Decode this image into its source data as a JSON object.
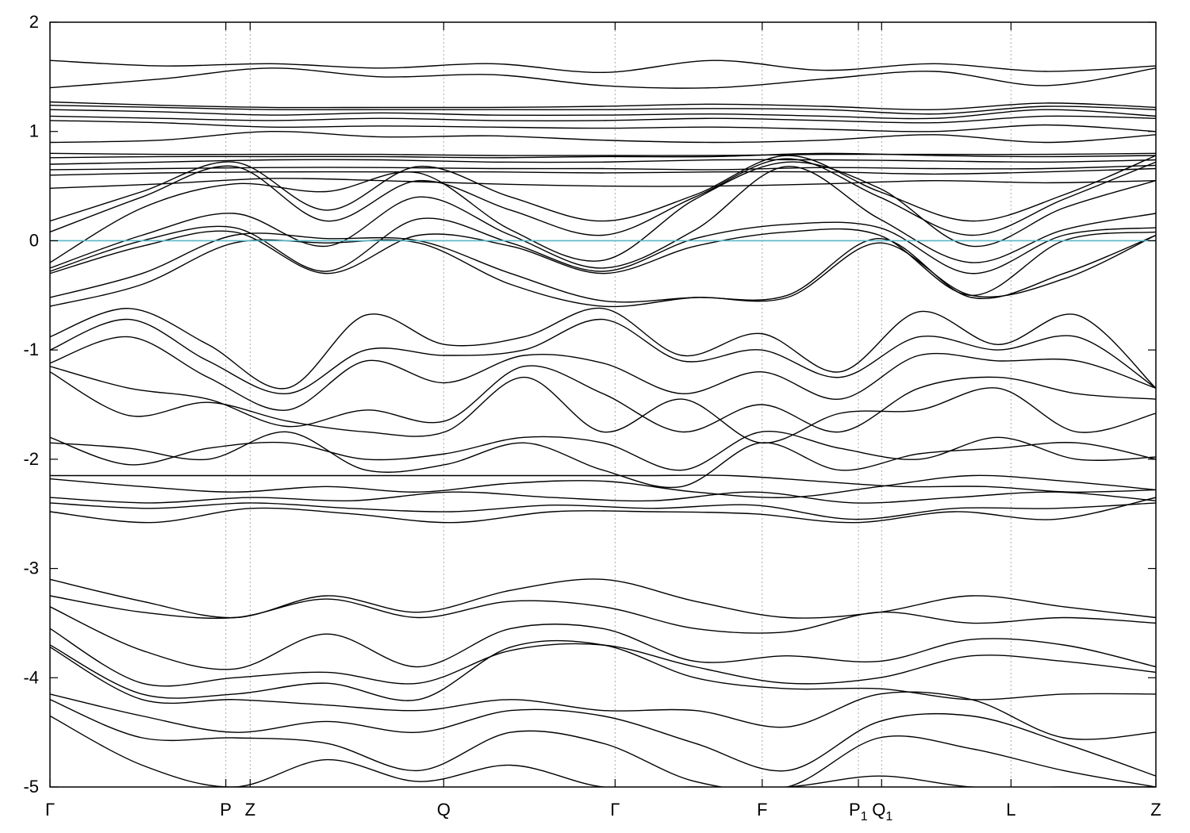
{
  "chart_data": {
    "type": "line",
    "title": "",
    "xlabel": "",
    "ylabel": "",
    "ylim": [
      -5,
      2
    ],
    "yticks": [
      -5,
      -4,
      -3,
      -2,
      -1,
      0,
      1,
      2
    ],
    "ytick_labels": [
      "-5",
      "-4",
      "-3",
      "-2",
      "-1",
      "0",
      "1",
      "2"
    ],
    "xlim": [
      0,
      1
    ],
    "grid": "vertical dotted lines at high-symmetry points",
    "fermi_level": 0,
    "colors": {
      "bands": "#000000",
      "fermi": "#5ab4c8",
      "kline": "#aaaaaa"
    },
    "kpoints": [
      {
        "label": "Γ",
        "sub": "",
        "x": 0.0
      },
      {
        "label": "P",
        "sub": "",
        "x": 0.159
      },
      {
        "label": "Z",
        "sub": "",
        "x": 0.181
      },
      {
        "label": "Q",
        "sub": "",
        "x": 0.356
      },
      {
        "label": "Γ",
        "sub": "",
        "x": 0.511
      },
      {
        "label": "F",
        "sub": "",
        "x": 0.644
      },
      {
        "label": "P",
        "sub": "1",
        "x": 0.731
      },
      {
        "label": "Q",
        "sub": "1",
        "x": 0.752
      },
      {
        "label": "L",
        "sub": "",
        "x": 0.869
      },
      {
        "label": "Z",
        "sub": "",
        "x": 1.0
      }
    ],
    "series": [
      {
        "values": [
          1.65,
          1.6,
          1.62,
          1.58,
          1.62,
          1.54,
          1.65,
          1.56,
          1.62,
          1.55,
          1.6
        ]
      },
      {
        "values": [
          1.4,
          1.48,
          1.58,
          1.5,
          1.52,
          1.42,
          1.4,
          1.48,
          1.55,
          1.42,
          1.58
        ]
      },
      {
        "values": [
          1.27,
          1.24,
          1.22,
          1.22,
          1.22,
          1.23,
          1.25,
          1.23,
          1.2,
          1.26,
          1.22
        ]
      },
      {
        "values": [
          1.24,
          1.22,
          1.2,
          1.2,
          1.2,
          1.2,
          1.21,
          1.2,
          1.16,
          1.23,
          1.2
        ]
      },
      {
        "values": [
          1.2,
          1.18,
          1.15,
          1.17,
          1.15,
          1.15,
          1.16,
          1.14,
          1.12,
          1.2,
          1.14
        ]
      },
      {
        "values": [
          1.14,
          1.12,
          1.1,
          1.12,
          1.1,
          1.1,
          1.12,
          1.1,
          1.08,
          1.14,
          1.12
        ]
      },
      {
        "values": [
          1.1,
          1.08,
          1.04,
          1.05,
          1.04,
          1.03,
          1.04,
          1.02,
          1.0,
          1.06,
          1.0
        ]
      },
      {
        "values": [
          0.9,
          0.92,
          1.0,
          0.95,
          0.96,
          0.92,
          0.9,
          0.92,
          0.97,
          0.9,
          0.97
        ]
      },
      {
        "values": [
          0.8,
          0.79,
          0.79,
          0.79,
          0.78,
          0.78,
          0.78,
          0.79,
          0.79,
          0.79,
          0.8
        ]
      },
      {
        "values": [
          0.76,
          0.77,
          0.77,
          0.77,
          0.76,
          0.77,
          0.77,
          0.8,
          0.78,
          0.77,
          0.78
        ]
      },
      {
        "values": [
          0.7,
          0.72,
          0.74,
          0.74,
          0.72,
          0.72,
          0.74,
          0.74,
          0.73,
          0.72,
          0.74
        ]
      },
      {
        "values": [
          0.65,
          0.66,
          0.67,
          0.67,
          0.66,
          0.66,
          0.65,
          0.67,
          0.66,
          0.66,
          0.69
        ]
      },
      {
        "values": [
          0.6,
          0.62,
          0.63,
          0.63,
          0.63,
          0.62,
          0.63,
          0.63,
          0.61,
          0.63,
          0.66
        ]
      },
      {
        "values": [
          0.48,
          0.52,
          0.57,
          0.55,
          0.52,
          0.5,
          0.5,
          0.52,
          0.55,
          0.53,
          0.55
        ]
      },
      {
        "values": [
          0.18,
          0.45,
          0.72,
          0.28,
          0.68,
          0.4,
          0.18,
          0.42,
          0.78,
          0.45,
          0.18,
          0.42,
          0.78
        ]
      },
      {
        "values": [
          0.08,
          0.4,
          0.68,
          0.18,
          0.55,
          0.28,
          0.05,
          0.4,
          0.75,
          0.4,
          0.05,
          0.38,
          0.72
        ]
      },
      {
        "values": [
          -0.2,
          0.3,
          0.52,
          0.45,
          0.62,
          0.1,
          -0.18,
          0.38,
          0.72,
          0.48,
          -0.05,
          0.3,
          0.55
        ]
      },
      {
        "values": [
          -0.25,
          0.05,
          0.25,
          -0.05,
          0.4,
          0.05,
          -0.25,
          0.1,
          0.68,
          0.2,
          -0.2,
          0.1,
          0.25
        ]
      },
      {
        "values": [
          -0.28,
          0.0,
          0.12,
          -0.28,
          0.2,
          -0.02,
          -0.28,
          0.02,
          0.15,
          0.12,
          -0.3,
          0.05,
          0.12
        ]
      },
      {
        "values": [
          -0.3,
          -0.05,
          0.08,
          -0.3,
          0.05,
          -0.05,
          -0.3,
          -0.05,
          0.08,
          0.05,
          -0.5,
          0.0,
          0.08
        ]
      },
      {
        "values": [
          -0.52,
          -0.3,
          0.05,
          0.02,
          0.0,
          -0.3,
          -0.55,
          -0.52,
          -0.5,
          0.02,
          -0.52,
          -0.3,
          0.05
        ]
      },
      {
        "values": [
          -0.6,
          -0.4,
          -0.02,
          -0.02,
          -0.02,
          -0.4,
          -0.6,
          -0.52,
          -0.52,
          -0.02,
          -0.5,
          -0.35,
          0.05
        ]
      },
      {
        "values": [
          -0.88,
          -0.62,
          -0.95,
          -1.35,
          -0.68,
          -0.95,
          -0.88,
          -0.62,
          -1.05,
          -0.85,
          -1.2,
          -0.65,
          -0.95,
          -0.68,
          -1.35
        ]
      },
      {
        "values": [
          -1.0,
          -0.72,
          -1.1,
          -1.4,
          -1.0,
          -1.05,
          -1.0,
          -0.72,
          -1.1,
          -1.0,
          -1.25,
          -0.88,
          -1.0,
          -0.88,
          -1.35
        ]
      },
      {
        "values": [
          -1.12,
          -0.88,
          -1.25,
          -1.55,
          -1.1,
          -1.3,
          -1.05,
          -1.12,
          -1.4,
          -1.2,
          -1.45,
          -1.05,
          -1.1,
          -1.1,
          -1.35
        ]
      },
      {
        "values": [
          -1.15,
          -1.35,
          -1.45,
          -1.7,
          -1.55,
          -1.65,
          -1.15,
          -1.4,
          -1.75,
          -1.5,
          -1.75,
          -1.35,
          -1.25,
          -1.4,
          -1.45
        ]
      },
      {
        "values": [
          -1.2,
          -1.6,
          -1.48,
          -1.65,
          -1.75,
          -1.75,
          -1.25,
          -1.75,
          -1.45,
          -1.85,
          -1.58,
          -1.55,
          -1.35,
          -1.75,
          -1.58
        ]
      },
      {
        "values": [
          -1.8,
          -2.05,
          -1.9,
          -1.85,
          -2.0,
          -1.95,
          -1.8,
          -1.85,
          -2.1,
          -1.75,
          -1.9,
          -2.0,
          -1.8,
          -2.0,
          -1.98
        ]
      },
      {
        "values": [
          -1.85,
          -1.9,
          -2.0,
          -1.75,
          -2.1,
          -2.05,
          -1.85,
          -2.1,
          -2.25,
          -1.85,
          -2.1,
          -1.95,
          -1.9,
          -1.85,
          -2.0
        ]
      },
      {
        "values": [
          -2.15,
          -2.15,
          -2.15,
          -2.15,
          -2.15,
          -2.15,
          -2.15,
          -2.15,
          -2.15,
          -2.2,
          -2.25,
          -2.25,
          -2.3,
          -2.28
        ]
      },
      {
        "values": [
          -2.18,
          -2.25,
          -2.3,
          -2.25,
          -2.3,
          -2.22,
          -2.2,
          -2.3,
          -2.35,
          -2.25,
          -2.15,
          -2.2,
          -2.28
        ]
      },
      {
        "values": [
          -2.35,
          -2.4,
          -2.35,
          -2.38,
          -2.3,
          -2.35,
          -2.38,
          -2.3,
          -2.4,
          -2.35,
          -2.3,
          -2.38
        ]
      },
      {
        "values": [
          -2.4,
          -2.45,
          -2.4,
          -2.45,
          -2.48,
          -2.42,
          -2.45,
          -2.42,
          -2.55,
          -2.45,
          -2.45,
          -2.4
        ]
      },
      {
        "values": [
          -2.48,
          -2.58,
          -2.45,
          -2.5,
          -2.58,
          -2.48,
          -2.48,
          -2.5,
          -2.58,
          -2.48,
          -2.55,
          -2.35
        ]
      },
      {
        "values": [
          -3.1,
          -3.3,
          -3.45,
          -3.25,
          -3.4,
          -3.2,
          -3.1,
          -3.3,
          -3.45,
          -3.4,
          -3.25,
          -3.35,
          -3.45
        ]
      },
      {
        "values": [
          -3.25,
          -3.4,
          -3.45,
          -3.28,
          -3.45,
          -3.3,
          -3.35,
          -3.55,
          -3.58,
          -3.4,
          -3.5,
          -3.45,
          -3.5
        ]
      },
      {
        "values": [
          -3.35,
          -3.75,
          -3.92,
          -3.6,
          -3.9,
          -3.55,
          -3.55,
          -3.85,
          -3.8,
          -3.85,
          -3.65,
          -3.7,
          -3.9
        ]
      },
      {
        "values": [
          -3.55,
          -4.05,
          -4.0,
          -3.95,
          -4.05,
          -3.75,
          -3.7,
          -3.9,
          -4.05,
          -4.0,
          -3.8,
          -3.85,
          -3.95
        ]
      },
      {
        "values": [
          -3.7,
          -4.15,
          -4.15,
          -4.05,
          -4.2,
          -3.72,
          -3.7,
          -4.0,
          -4.1,
          -4.1,
          -4.2,
          -4.15,
          -4.15
        ]
      },
      {
        "values": [
          -3.72,
          -4.2,
          -4.2,
          -4.25,
          -4.3,
          -4.2,
          -4.3,
          -4.3,
          -4.45,
          -4.15,
          -4.2,
          -4.55,
          -4.5
        ]
      },
      {
        "values": [
          -4.15,
          -4.35,
          -4.5,
          -4.4,
          -4.5,
          -4.3,
          -4.35,
          -4.6,
          -4.85,
          -4.4,
          -4.35,
          -4.6,
          -4.9
        ]
      },
      {
        "values": [
          -4.2,
          -4.55,
          -4.55,
          -4.6,
          -4.85,
          -4.5,
          -4.6,
          -4.95,
          -5.0,
          -4.55,
          -4.65,
          -4.85,
          -5.0
        ]
      },
      {
        "values": [
          -4.35,
          -4.8,
          -5.0,
          -4.75,
          -4.95,
          -4.8,
          -5.0,
          -5.0,
          -5.0,
          -4.9,
          -5.0,
          -5.0,
          -5.0
        ]
      }
    ]
  }
}
